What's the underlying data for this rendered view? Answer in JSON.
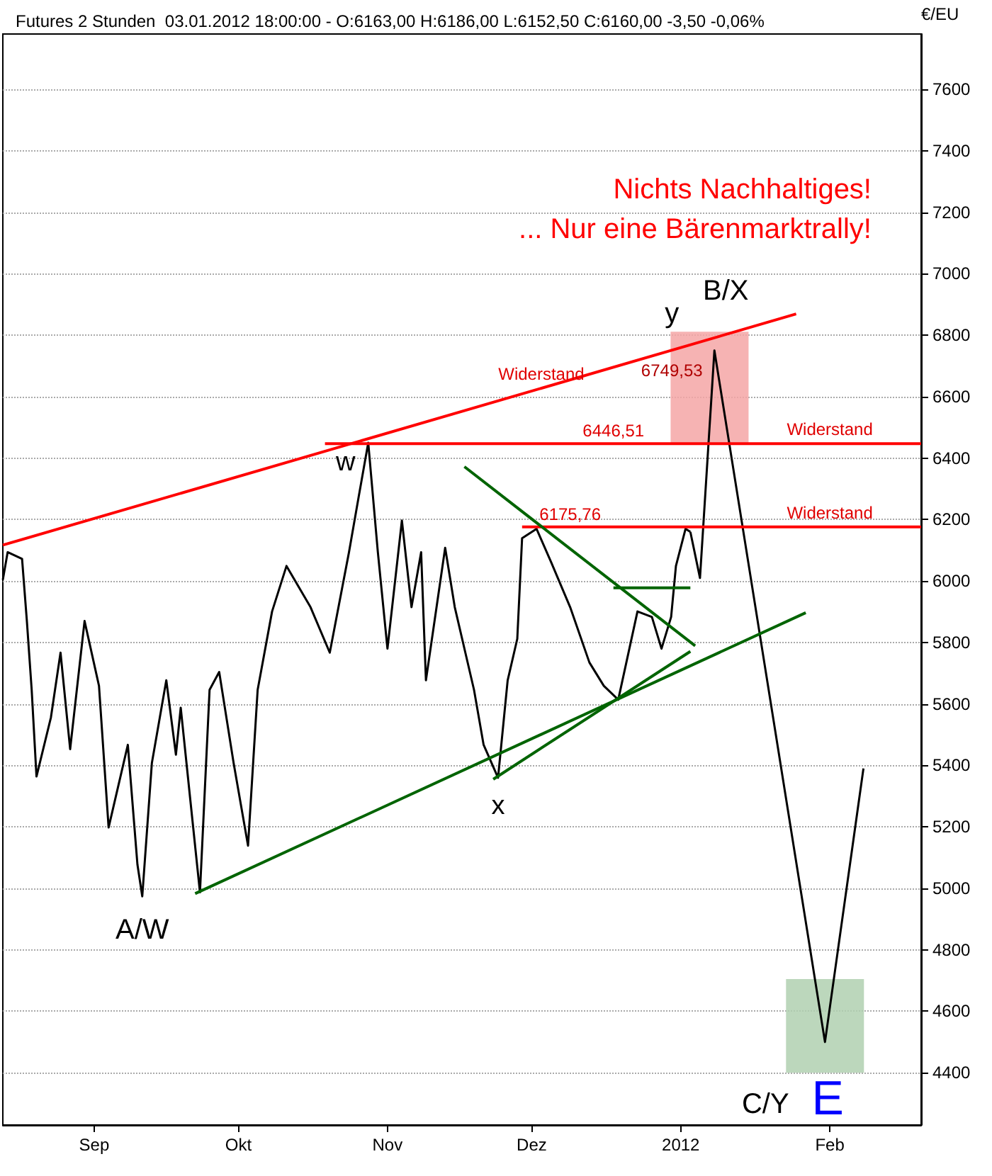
{
  "chart_data": {
    "type": "line",
    "title": "Futures 2 Stunden  03.01.2012 18:00:00 - O:6163,00 H:6186,00 L:6152,50 C:6160,00 -3,50 -0,06%",
    "subtitle": "Nichts Nachhaltiges!\n... Nur eine Bärenmarktrally!",
    "ylabel": "€/EU",
    "xlim": [
      "2011-08-13",
      "2012-02-20"
    ],
    "xticks": [
      {
        "value": "2011-09-01",
        "label": "Sep"
      },
      {
        "value": "2011-10-01",
        "label": "Okt"
      },
      {
        "value": "2011-11-01",
        "label": "Nov"
      },
      {
        "value": "2011-12-01",
        "label": "Dez"
      },
      {
        "value": "2012-01-01",
        "label": "2012"
      },
      {
        "value": "2012-02-01",
        "label": "Feb"
      }
    ],
    "ylim": [
      4230,
      7780
    ],
    "yticks": [
      4400,
      4600,
      4800,
      5000,
      5200,
      5400,
      5600,
      5800,
      6000,
      6200,
      6400,
      6600,
      6800,
      7000,
      7200,
      7400,
      7600
    ],
    "grid": "y",
    "marker": "none",
    "line_style": "solid",
    "series": [
      {
        "type": "bar",
        "color": "#f4a6a6",
        "x": [
          "2012-01-07"
        ],
        "base": [
          6444
        ],
        "values": [
          367
        ]
      },
      {
        "type": "bar",
        "color": "#b0d0b0",
        "x": [
          "2012-01-31"
        ],
        "base": [
          4400
        ],
        "values": [
          305
        ]
      },
      {
        "color": "#000000",
        "x": [
          "2011-08-13",
          "2011-08-14",
          "2011-08-17",
          "2011-08-18",
          "2011-08-19",
          "2011-08-20",
          "2011-08-23",
          "2011-08-25",
          "2011-08-27",
          "2011-08-30",
          "2011-09-02",
          "2011-09-04",
          "2011-09-08",
          "2011-09-10",
          "2011-09-11",
          "2011-09-13",
          "2011-09-16",
          "2011-09-18",
          "2011-09-19",
          "2011-09-21",
          "2011-09-23",
          "2011-09-25",
          "2011-09-27",
          "2011-09-30",
          "2011-10-03",
          "2011-10-05",
          "2011-10-08",
          "2011-10-11",
          "2011-10-16",
          "2011-10-20",
          "2011-10-24",
          "2011-10-26",
          "2011-10-28",
          "2011-10-30",
          "2011-11-01",
          "2011-11-04",
          "2011-11-06",
          "2011-11-08",
          "2011-11-09",
          "2011-11-13",
          "2011-11-15",
          "2011-11-19",
          "2011-11-21",
          "2011-11-24",
          "2011-11-26",
          "2011-11-28",
          "2011-11-29",
          "2011-12-02",
          "2011-12-05",
          "2011-12-09",
          "2011-12-13",
          "2011-12-16",
          "2011-12-19",
          "2011-12-23",
          "2011-12-26",
          "2011-12-28",
          "2011-12-30",
          "2011-12-31",
          "2012-01-02",
          "2012-01-03"
        ],
        "values": [
          6004,
          6094,
          6072,
          5870,
          5646,
          5364,
          5556,
          5767,
          5453,
          5870,
          5659,
          5198,
          5467,
          5077,
          4974,
          5408,
          5677,
          5435,
          5588,
          5287,
          4987,
          5646,
          5704,
          5408,
          5139,
          5646,
          5901,
          6049,
          5915,
          5767,
          6094,
          6273,
          6450,
          6094,
          5780,
          6197,
          5915,
          6094,
          5677,
          6108,
          5915,
          5646,
          5467,
          5360,
          5677,
          5812,
          6139,
          6170,
          6063,
          5915,
          5735,
          5659,
          5614,
          5901,
          5883,
          5780,
          5883,
          6049,
          6170,
          6160
        ]
      },
      {
        "color": "#000000",
        "x": [
          "2012-01-03",
          "2012-01-05",
          "2012-01-08",
          "2012-01-31",
          "2012-02-08"
        ],
        "values": [
          6160,
          6010,
          6750,
          4500,
          5390
        ]
      },
      {
        "color": "#ff0000",
        "x": [
          "2011-08-13",
          "2012-01-25"
        ],
        "values": [
          6117,
          6869
        ]
      },
      {
        "color": "#ff0000",
        "x": [
          "2011-10-19",
          "2012-02-20"
        ],
        "values": [
          6447,
          6447
        ]
      },
      {
        "color": "#ff0000",
        "x": [
          "2011-11-29",
          "2012-02-20"
        ],
        "values": [
          6176,
          6176
        ]
      },
      {
        "color": "#006400",
        "x": [
          "2011-09-22",
          "2012-01-27"
        ],
        "values": [
          4983,
          5897
        ]
      },
      {
        "color": "#006400",
        "x": [
          "2011-11-17",
          "2012-01-04"
        ],
        "values": [
          6372,
          5789
        ]
      },
      {
        "color": "#006400",
        "x": [
          "2011-11-23",
          "2012-01-03"
        ],
        "values": [
          5355,
          5771
        ]
      },
      {
        "color": "#006400",
        "x": [
          "2011-12-18",
          "2012-01-03"
        ],
        "values": [
          5978,
          5978
        ]
      }
    ],
    "annotations": [
      {
        "text": "Widerstand",
        "x": "2011-12-03",
        "y": 6628
      },
      {
        "text": "Widerstand",
        "x": "2012-02-01",
        "y": 6447
      },
      {
        "text": "Widerstand",
        "x": "2012-02-01",
        "y": 6176
      },
      {
        "text": "6446,51",
        "x": "2011-12-18",
        "y": 6447
      },
      {
        "text": "6175,76",
        "x": "2011-12-09",
        "y": 6176
      },
      {
        "text": "6749,53",
        "x": "2012-01-08",
        "y": 6750
      },
      {
        "text": "w",
        "x": "2011-10-28",
        "y": 6450
      },
      {
        "text": "x",
        "x": "2011-11-24",
        "y": 5360
      },
      {
        "text": "A/W",
        "x": "2011-09-11",
        "y": 4974
      },
      {
        "text": "y",
        "x": "2012-01-08",
        "y": 6750
      },
      {
        "text": "B/X",
        "x": "2012-01-08",
        "y": 6750
      },
      {
        "text": "C/Y",
        "x": "2012-01-31",
        "y": 4500
      },
      {
        "text": "E",
        "x": "2012-01-31",
        "y": 4500
      }
    ]
  }
}
